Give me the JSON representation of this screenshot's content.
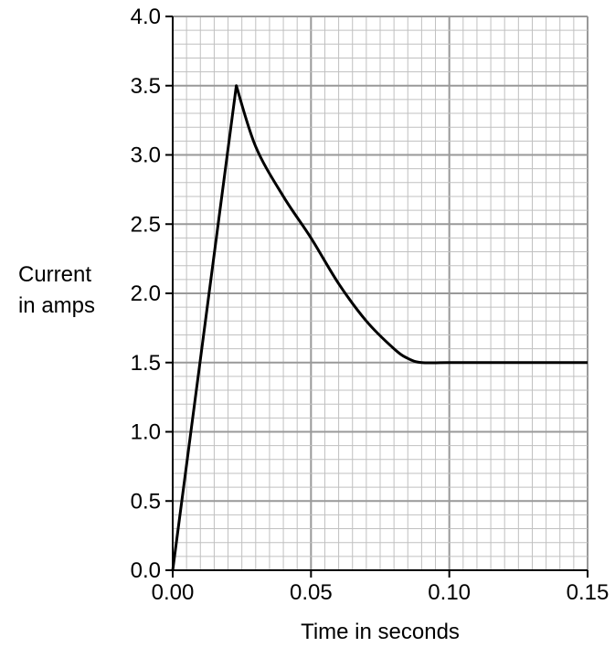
{
  "chart_data": {
    "type": "line",
    "title": "",
    "xlabel": "Time in seconds",
    "ylabel_lines": [
      "Current",
      "in amps"
    ],
    "xlim": [
      0,
      0.15
    ],
    "ylim": [
      0,
      4.0
    ],
    "x_ticks": [
      0,
      0.05,
      0.1,
      0.15
    ],
    "x_tick_labels": [
      "0.00",
      "0.05",
      "0.10",
      "0.15"
    ],
    "y_ticks": [
      0,
      0.5,
      1.0,
      1.5,
      2.0,
      2.5,
      3.0,
      3.5,
      4.0
    ],
    "y_tick_labels": [
      "0.0",
      "0.5",
      "1.0",
      "1.5",
      "2.0",
      "2.5",
      "3.0",
      "3.5",
      "4.0"
    ],
    "grid": true,
    "grid_minor_x_step": 0.005,
    "grid_minor_y_step": 0.1,
    "legend": "none",
    "series": [
      {
        "x": [
          0,
          0.023,
          0.03,
          0.04,
          0.05,
          0.06,
          0.07,
          0.08,
          0.085,
          0.09,
          0.1,
          0.12,
          0.15
        ],
        "y": [
          0,
          3.5,
          3.06,
          2.7,
          2.4,
          2.07,
          1.8,
          1.6,
          1.53,
          1.5,
          1.5,
          1.5,
          1.5
        ]
      }
    ],
    "colors": {
      "line": "#000000",
      "grid_minor": "#c0c0c0",
      "grid_major": "#999999",
      "axis": "#000000"
    }
  }
}
